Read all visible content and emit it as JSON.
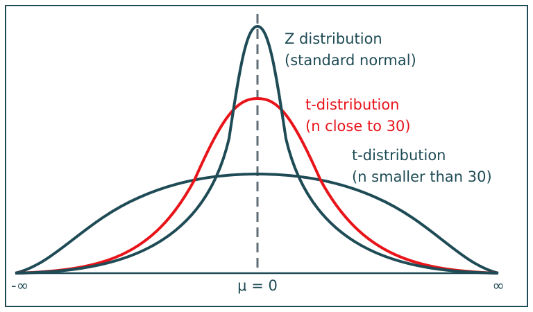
{
  "curves": [
    {
      "label": [
        "Z distribution",
        "(standard normal)"
      ]
    },
    {
      "label": [
        "t-distribution",
        "(n close to 30)"
      ]
    },
    {
      "label": [
        "t-distribution",
        "(n smaller than 30)"
      ]
    }
  ],
  "axis": {
    "left": "-∞",
    "center": "μ = 0",
    "right": "∞"
  }
}
